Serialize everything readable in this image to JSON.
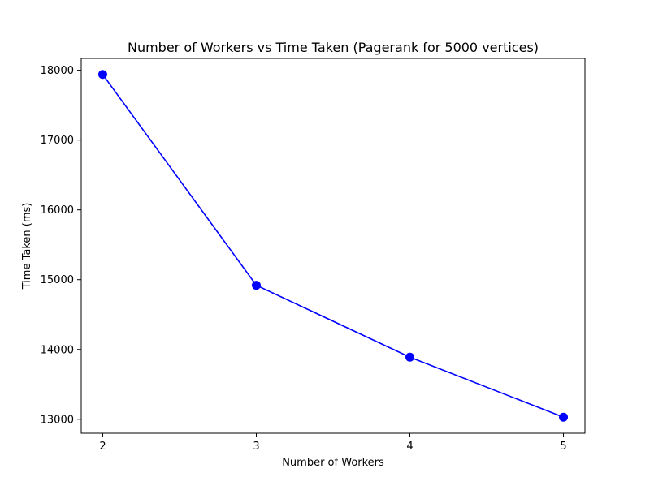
{
  "chart_data": {
    "type": "line",
    "title": "Number of Workers vs Time Taken (Pagerank for 5000 vertices)",
    "xlabel": "Number of Workers",
    "ylabel": "Time Taken (ms)",
    "x": [
      2,
      3,
      4,
      5
    ],
    "series": [
      {
        "values": [
          17940,
          14920,
          13890,
          13030
        ],
        "color": "#0000ff",
        "marker": "circle"
      }
    ],
    "xlim": [
      1.86,
      5.14
    ],
    "ylim": [
      12800,
      18170
    ],
    "xticks": [
      "2",
      "3",
      "4",
      "5"
    ],
    "yticks": [
      "13000",
      "14000",
      "15000",
      "16000",
      "17000",
      "18000"
    ],
    "grid": false,
    "legend": "none"
  }
}
